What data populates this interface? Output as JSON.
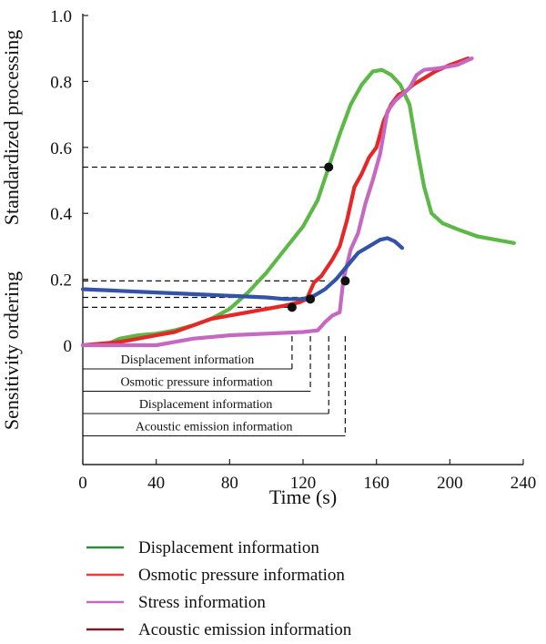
{
  "chart_data": {
    "type": "line",
    "xlabel": "Time (s)",
    "ylabel_top": "Standardized processing",
    "ylabel_bottom": "Sensitivity ordering",
    "xlim": [
      0,
      240
    ],
    "ylim": [
      0,
      1.0
    ],
    "xticks": [
      0,
      40,
      80,
      120,
      160,
      200,
      240
    ],
    "yticks": [
      {
        "value": 0,
        "label": "0"
      },
      {
        "value": 0.2,
        "label": "0.2"
      },
      {
        "value": 0.4,
        "label": "0.4"
      },
      {
        "value": 0.6,
        "label": "0.6"
      },
      {
        "value": 0.8,
        "label": "0.8"
      },
      {
        "value": 1.0,
        "label": "1.0"
      }
    ],
    "series": [
      {
        "name": "Displacement information",
        "color": "#5cb947",
        "points": [
          [
            12,
            0.0
          ],
          [
            20,
            0.02
          ],
          [
            30,
            0.03
          ],
          [
            40,
            0.035
          ],
          [
            50,
            0.045
          ],
          [
            60,
            0.06
          ],
          [
            70,
            0.08
          ],
          [
            80,
            0.11
          ],
          [
            90,
            0.16
          ],
          [
            100,
            0.22
          ],
          [
            110,
            0.29
          ],
          [
            120,
            0.36
          ],
          [
            128,
            0.44
          ],
          [
            134,
            0.54
          ],
          [
            140,
            0.64
          ],
          [
            146,
            0.73
          ],
          [
            152,
            0.79
          ],
          [
            158,
            0.83
          ],
          [
            163,
            0.835
          ],
          [
            168,
            0.82
          ],
          [
            173,
            0.79
          ],
          [
            178,
            0.73
          ],
          [
            182,
            0.6
          ],
          [
            186,
            0.48
          ],
          [
            190,
            0.4
          ],
          [
            196,
            0.37
          ],
          [
            205,
            0.35
          ],
          [
            215,
            0.33
          ],
          [
            225,
            0.32
          ],
          [
            235,
            0.31
          ]
        ]
      },
      {
        "name": "Osmotic pressure information",
        "color": "#e42727",
        "points": [
          [
            0,
            0.0
          ],
          [
            10,
            0.005
          ],
          [
            20,
            0.01
          ],
          [
            30,
            0.02
          ],
          [
            40,
            0.03
          ],
          [
            50,
            0.04
          ],
          [
            60,
            0.06
          ],
          [
            70,
            0.08
          ],
          [
            80,
            0.09
          ],
          [
            90,
            0.1
          ],
          [
            100,
            0.11
          ],
          [
            110,
            0.12
          ],
          [
            118,
            0.13
          ],
          [
            122,
            0.14
          ],
          [
            126,
            0.19
          ],
          [
            130,
            0.21
          ],
          [
            136,
            0.26
          ],
          [
            140,
            0.3
          ],
          [
            144,
            0.38
          ],
          [
            148,
            0.48
          ],
          [
            152,
            0.52
          ],
          [
            156,
            0.57
          ],
          [
            160,
            0.6
          ],
          [
            164,
            0.68
          ],
          [
            168,
            0.73
          ],
          [
            172,
            0.76
          ],
          [
            176,
            0.77
          ],
          [
            180,
            0.79
          ],
          [
            186,
            0.81
          ],
          [
            192,
            0.83
          ],
          [
            200,
            0.85
          ],
          [
            210,
            0.87
          ]
        ]
      },
      {
        "name": "Stress information",
        "color": "#c568c2",
        "points": [
          [
            0,
            0.0
          ],
          [
            20,
            0.0
          ],
          [
            40,
            0.0
          ],
          [
            50,
            0.01
          ],
          [
            60,
            0.02
          ],
          [
            80,
            0.03
          ],
          [
            100,
            0.035
          ],
          [
            120,
            0.04
          ],
          [
            128,
            0.045
          ],
          [
            132,
            0.07
          ],
          [
            136,
            0.09
          ],
          [
            140,
            0.1
          ],
          [
            142,
            0.2
          ],
          [
            146,
            0.29
          ],
          [
            150,
            0.34
          ],
          [
            154,
            0.43
          ],
          [
            158,
            0.5
          ],
          [
            162,
            0.58
          ],
          [
            166,
            0.71
          ],
          [
            170,
            0.74
          ],
          [
            174,
            0.76
          ],
          [
            178,
            0.78
          ],
          [
            182,
            0.82
          ],
          [
            186,
            0.835
          ],
          [
            194,
            0.84
          ],
          [
            204,
            0.85
          ],
          [
            212,
            0.87
          ]
        ]
      },
      {
        "name": "Acoustic emission information",
        "color": "#3553a6",
        "points": [
          [
            0,
            0.17
          ],
          [
            20,
            0.165
          ],
          [
            40,
            0.16
          ],
          [
            60,
            0.155
          ],
          [
            80,
            0.15
          ],
          [
            100,
            0.145
          ],
          [
            110,
            0.14
          ],
          [
            120,
            0.14
          ],
          [
            126,
            0.15
          ],
          [
            132,
            0.17
          ],
          [
            138,
            0.2
          ],
          [
            144,
            0.24
          ],
          [
            150,
            0.28
          ],
          [
            156,
            0.3
          ],
          [
            162,
            0.32
          ],
          [
            166,
            0.325
          ],
          [
            170,
            0.315
          ],
          [
            174,
            0.295
          ]
        ]
      }
    ],
    "legend_series": [
      {
        "name": "Displacement information",
        "color": "#2c8a3b"
      },
      {
        "name": "Osmotic pressure information",
        "color": "#ee3b3b"
      },
      {
        "name": "Stress information",
        "color": "#c568c2"
      },
      {
        "name": "Acoustic emission information",
        "color": "#7a1f2a"
      }
    ],
    "marker_points": [
      {
        "x": 114,
        "y": 0.115
      },
      {
        "x": 124,
        "y": 0.14
      },
      {
        "x": 134,
        "y": 0.54
      },
      {
        "x": 143,
        "y": 0.195
      }
    ],
    "reference_lines": [
      {
        "x": 134,
        "y": 0.54
      },
      {
        "x": 134,
        "y": 0.195
      },
      {
        "x": 124,
        "y": 0.145
      },
      {
        "x": 114,
        "y": 0.115
      }
    ],
    "ordering_annotations": [
      {
        "label": "Displacement information",
        "x_end": 114
      },
      {
        "label": "Osmotic pressure information",
        "x_end": 124
      },
      {
        "label": "Displacement information",
        "x_end": 134
      },
      {
        "label": "Acoustic emission information",
        "x_end": 143
      }
    ],
    "grid": false,
    "legend_position": "bottom"
  }
}
